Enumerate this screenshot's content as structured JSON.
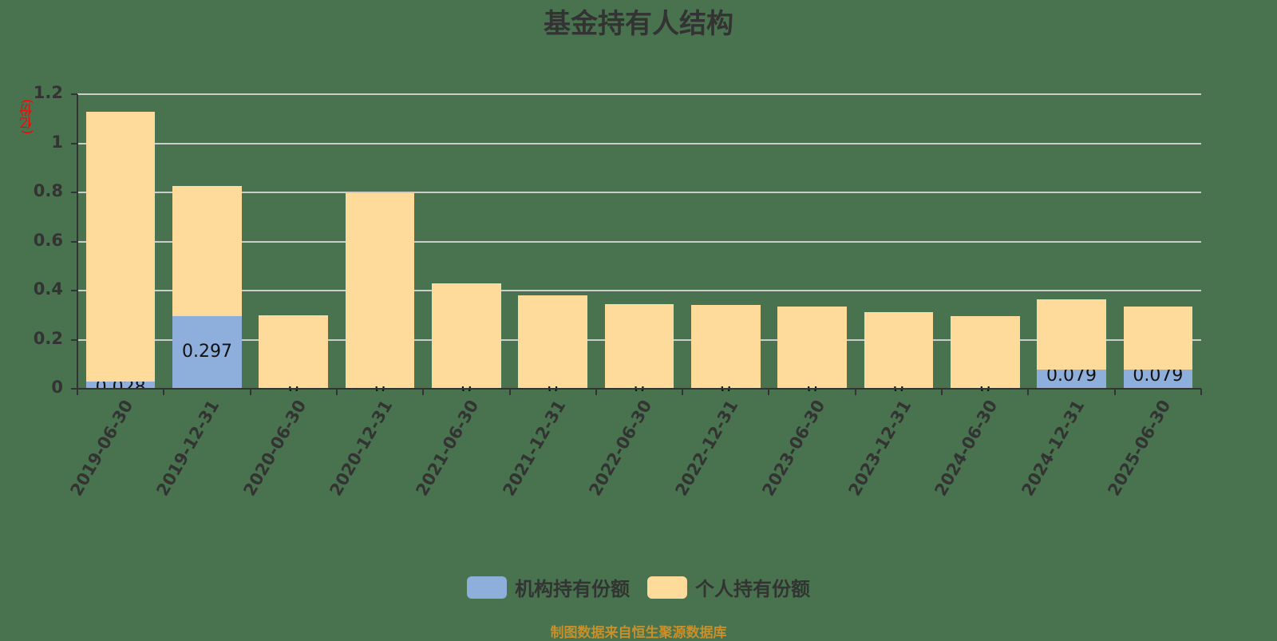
{
  "chart_data": {
    "type": "bar",
    "stacked": true,
    "title": "基金持有人结构",
    "xlabel": "",
    "ylabel": "(亿份)",
    "ylim": [
      0,
      1.2
    ],
    "yticks": [
      0,
      0.2,
      0.4,
      0.6,
      0.8,
      1,
      1.2
    ],
    "ytick_labels": [
      "0",
      "0.2",
      "0.4",
      "0.6",
      "0.8",
      "1",
      "1.2"
    ],
    "grid": true,
    "legend_position": "bottom",
    "categories": [
      "2019-06-30",
      "2019-12-31",
      "2020-06-30",
      "2020-12-31",
      "2021-06-30",
      "2021-12-31",
      "2022-06-30",
      "2022-12-31",
      "2023-06-30",
      "2023-12-31",
      "2024-06-30",
      "2024-12-31",
      "2025-06-30"
    ],
    "series": [
      {
        "name": "机构持有份额",
        "color": "#8eaedc",
        "values": [
          0.028,
          0.297,
          0,
          0,
          0,
          0,
          0,
          0,
          0,
          0,
          0,
          0.079,
          0.079
        ]
      },
      {
        "name": "个人持有份额",
        "color": "#ffdb9b",
        "values": [
          1.101,
          0.529,
          0.298,
          0.797,
          0.428,
          0.38,
          0.344,
          0.341,
          0.334,
          0.312,
          0.297,
          0.284,
          0.255
        ]
      }
    ],
    "data_labels": {
      "机构持有份额": [
        "0.028",
        "0.297",
        "0",
        "0",
        "0",
        "0",
        "0",
        "0",
        "0",
        "0",
        "0",
        "0.079",
        "0.079"
      ]
    }
  },
  "legend": [
    {
      "label": "机构持有份额",
      "color": "#8eaedc"
    },
    {
      "label": "个人持有份额",
      "color": "#ffdb9b"
    }
  ],
  "source_note": "制图数据来自恒生聚源数据库"
}
